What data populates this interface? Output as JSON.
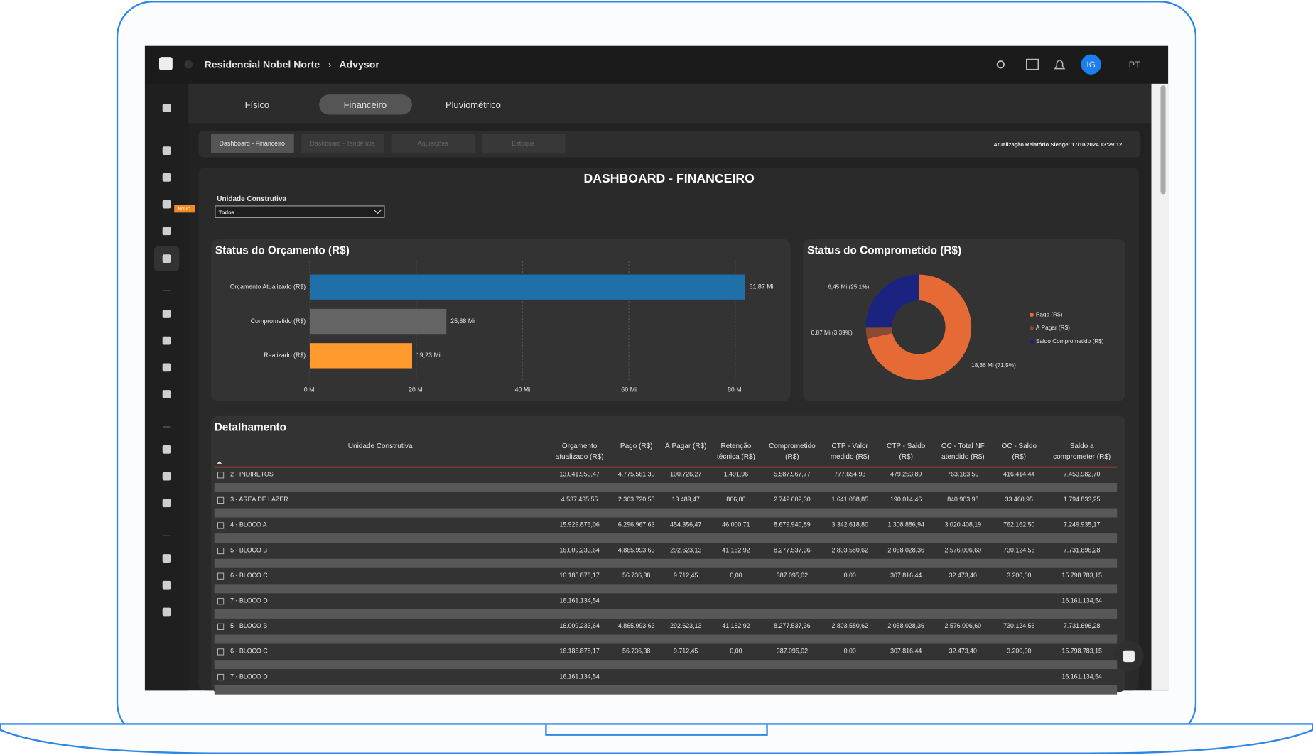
{
  "header": {
    "breadcrumb": [
      "Residencial Nobel Norte",
      "Advysor"
    ],
    "user": "IG",
    "language": "PT",
    "badge": "NOVO"
  },
  "tabs": [
    "Físico",
    "Financeiro",
    "Pluviométrico"
  ],
  "subtabs": [
    "Dashboard - Financeiro",
    "Dashboard - Tendência",
    "Aquisições",
    "Estoque"
  ],
  "update_note": "Atualização Relatório Sienge: 17/10/2024 13:29:12",
  "dashboard_title": "DASHBOARD - FINANCEIRO",
  "filter": {
    "label": "Unidade Construtiva",
    "value": "Todos"
  },
  "budget_chart": {
    "type": "bar",
    "title": "Status do Orçamento (R$)",
    "categories": [
      "Orçamento Atualizado (R$)",
      "Comprometido (R$)",
      "Realizado (R$)"
    ],
    "values": [
      81.87,
      25.68,
      19.23
    ],
    "value_labels": [
      "81,87 Mi",
      "25,68 Mi",
      "19,23 Mi"
    ],
    "colors": [
      "#1f6fa8",
      "#646464",
      "#ff9a2e"
    ],
    "xlim": [
      0,
      85
    ],
    "xticks": [
      {
        "value": 0,
        "label": "0 Mi"
      },
      {
        "value": 20,
        "label": "20 Mi"
      },
      {
        "value": 40,
        "label": "40 Mi"
      },
      {
        "value": 60,
        "label": "60 Mi"
      },
      {
        "value": 80,
        "label": "80 Mi"
      }
    ],
    "grid": true
  },
  "commit_chart": {
    "type": "pie",
    "title": "Status do Comprometido (R$)",
    "categories": [
      "Pago (R$)",
      "À Pagar (R$)",
      "Saldo Comprometido (R$)"
    ],
    "values": [
      18.36,
      0.87,
      6.45
    ],
    "value_labels": [
      "18,36 Mi (71,5%)",
      "0,87 Mi (3,39%)",
      "6,45 Mi (25,1%)"
    ],
    "colors": [
      "#e66a35",
      "#8a4a33",
      "#1a2380"
    ],
    "legend": "right"
  },
  "table": {
    "title": "Detalhamento",
    "columns": [
      [
        "Unidade Construtiva"
      ],
      [
        "Orçamento",
        "atualizado (R$)"
      ],
      [
        "Pago (R$)"
      ],
      [
        "À Pagar (R$)"
      ],
      [
        "Retenção",
        "técnica (R$)"
      ],
      [
        "Comprometido",
        "(R$)"
      ],
      [
        "CTP - Valor",
        "medido (R$)"
      ],
      [
        "CTP - Saldo",
        "(R$)"
      ],
      [
        "OC - Total NF",
        "atendido (R$)"
      ],
      [
        "OC - Saldo",
        "(R$)"
      ],
      [
        "Saldo a",
        "comprometer (R$)"
      ]
    ],
    "rows": [
      [
        "2 - INDIRETOS",
        "13.041.950,47",
        "4.775.561,30",
        "100.726,27",
        "1.491,96",
        "5.587.967,77",
        "777.654,93",
        "479.253,89",
        "763.163,59",
        "416.414,44",
        "7.453.982,70"
      ],
      [
        "3 - AREA DE LAZER",
        "4.537.435,55",
        "2.363.720,55",
        "13.489,47",
        "866,00",
        "2.742.602,30",
        "1.641.088,85",
        "190.014,46",
        "840.903,98",
        "33.460,95",
        "1.794.833,25"
      ],
      [
        "4 - BLOCO A",
        "15.929.876,06",
        "6.296.967,63",
        "454.356,47",
        "46.000,71",
        "8.679.940,89",
        "3.342.618,80",
        "1.308.886,94",
        "3.020.408,19",
        "762.162,50",
        "7.249.935,17"
      ],
      [
        "5 - BLOCO B",
        "16.009.233,64",
        "4.865.993,63",
        "292.623,13",
        "41.162,92",
        "8.277.537,36",
        "2.803.580,62",
        "2.058.028,36",
        "2.576.096,60",
        "730.124,56",
        "7.731.696,28"
      ],
      [
        "6 - BLOCO C",
        "16.185.878,17",
        "56.736,38",
        "9.712,45",
        "0,00",
        "387.095,02",
        "0,00",
        "307.816,44",
        "32.473,40",
        "3.200,00",
        "15.798.783,15"
      ],
      [
        "7 - BLOCO D",
        "16.161.134,54",
        null,
        null,
        null,
        null,
        null,
        null,
        null,
        null,
        "16.161.134,54"
      ],
      [
        "5 - BLOCO B",
        "16.009.233,64",
        "4.865.993,63",
        "292.623,13",
        "41.162,92",
        "8.277.537,36",
        "2.803.580,62",
        "2.058.028,36",
        "2.576.096,60",
        "730.124,56",
        "7.731.696,28"
      ],
      [
        "6 - BLOCO C",
        "16.185.878,17",
        "56.736,38",
        "9.712,45",
        "0,00",
        "387.095,02",
        "0,00",
        "307.816,44",
        "32.473,40",
        "3.200,00",
        "15.798.783,15"
      ],
      [
        "7 - BLOCO D",
        "16.161.134,54",
        null,
        null,
        null,
        null,
        null,
        null,
        null,
        null,
        "16.161.134,54"
      ]
    ]
  }
}
